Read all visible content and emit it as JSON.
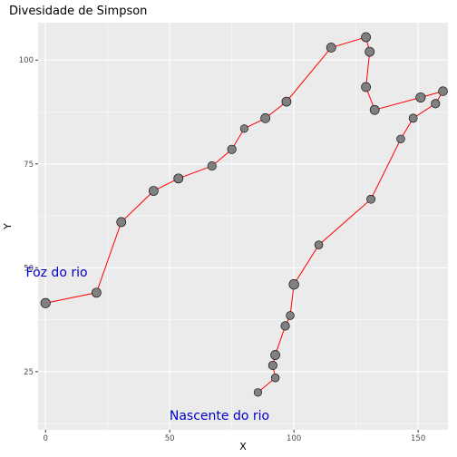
{
  "chart_data": {
    "type": "scatter",
    "title": "Divesidade de Simpson",
    "xlabel": "X",
    "ylabel": "Y",
    "xlim": [
      -3,
      162
    ],
    "ylim": [
      11,
      109
    ],
    "xticks": [
      0,
      50,
      100,
      150
    ],
    "yticks": [
      25,
      50,
      75,
      100
    ],
    "grid": true,
    "line_color": "#ff0000",
    "point_color": "#808080",
    "annotation_color": "#0000cc",
    "annotations": [
      {
        "text": "Foz do rio",
        "x": 4.5,
        "y": 49
      },
      {
        "text": "Nascente do rio",
        "x": 70,
        "y": 14.5
      }
    ],
    "series": [
      {
        "x": [
          0,
          20.5,
          30.5,
          43.5,
          53.5,
          67,
          75,
          80,
          88.5,
          97,
          115,
          129,
          130.5,
          129,
          132.5,
          151,
          160,
          157,
          148,
          143,
          131,
          110,
          100,
          98.5,
          96.5,
          92.5,
          91.5,
          92.5,
          85.5
        ],
        "y": [
          41.5,
          44,
          61,
          68.5,
          71.5,
          74.5,
          78.5,
          83.5,
          86,
          90,
          103,
          105.5,
          102,
          93.5,
          88,
          91,
          92.5,
          89.5,
          86,
          81,
          66.5,
          55.5,
          46,
          38.5,
          36,
          29,
          26.5,
          23.5,
          20
        ],
        "size": [
          0.85,
          0.8,
          0.8,
          0.8,
          0.8,
          0.7,
          0.7,
          0.55,
          0.8,
          0.8,
          0.8,
          0.8,
          0.8,
          0.8,
          0.8,
          0.85,
          0.75,
          0.7,
          0.65,
          0.6,
          0.65,
          0.6,
          0.9,
          0.6,
          0.7,
          0.8,
          0.7,
          0.6,
          0.55
        ]
      }
    ]
  }
}
